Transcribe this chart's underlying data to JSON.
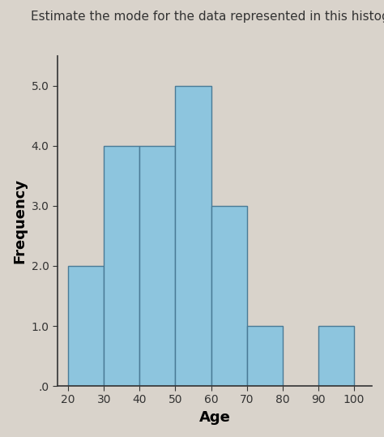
{
  "title": "Estimate the mode for the data represented in this histogram.",
  "xlabel": "Age",
  "ylabel": "Frequency",
  "bar_edges": [
    20,
    30,
    40,
    50,
    60,
    70,
    80,
    90,
    100
  ],
  "bar_heights": [
    2.0,
    4.0,
    4.0,
    5.0,
    3.0,
    1.0,
    0.0,
    1.0
  ],
  "bar_color": "#8dc5de",
  "bar_edgecolor": "#4a7a96",
  "yticks": [
    0.0,
    1.0,
    2.0,
    3.0,
    4.0,
    5.0
  ],
  "ytick_labels": [
    ".0",
    "1.0",
    "2.0",
    "3.0",
    "4.0",
    "5.0"
  ],
  "xticks": [
    20,
    30,
    40,
    50,
    60,
    70,
    80,
    90,
    100
  ],
  "ylim": [
    0,
    5.5
  ],
  "xlim": [
    17,
    105
  ],
  "bg_color": "#d9d3cb",
  "title_fontsize": 11,
  "axis_label_fontsize": 13,
  "tick_fontsize": 10,
  "ylabel_fontsize": 13
}
